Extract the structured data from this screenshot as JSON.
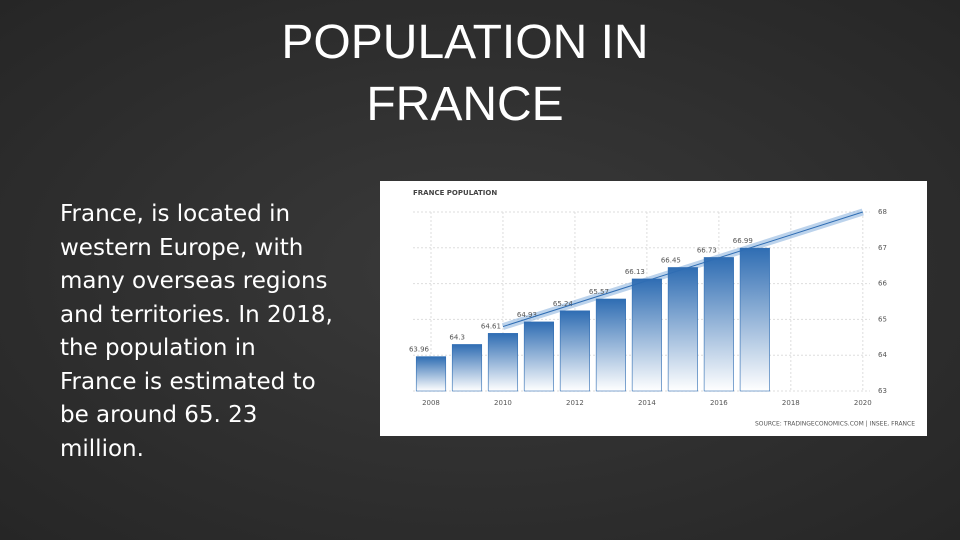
{
  "slide": {
    "title": "POPULATION IN FRANCE",
    "body": "France, is located in western Europe, with many overseas regions and territories. In 2018, the population in France is estimated to be around 65. 23 million."
  },
  "chart_data": {
    "type": "bar",
    "title": "FRANCE POPULATION",
    "x": [
      2008,
      2009,
      2010,
      2011,
      2012,
      2013,
      2014,
      2015,
      2016,
      2017
    ],
    "values": [
      63.96,
      64.3,
      64.61,
      64.93,
      65.24,
      65.57,
      66.13,
      66.45,
      66.73,
      66.99
    ],
    "color": "#2f6db3",
    "trend": {
      "x": [
        2010,
        2020
      ],
      "values": [
        64.8,
        68
      ],
      "color": "#8fb6e0"
    },
    "xlim": [
      2007.5,
      2020.2
    ],
    "xticks": [
      2008,
      2010,
      2012,
      2014,
      2016,
      2018,
      2020
    ],
    "ylim": [
      63,
      68
    ],
    "yticks": [
      63,
      64,
      65,
      66,
      67,
      68
    ],
    "grid": true,
    "source": "SOURCE: TRADINGECONOMICS.COM | INSEE, FRANCE"
  }
}
